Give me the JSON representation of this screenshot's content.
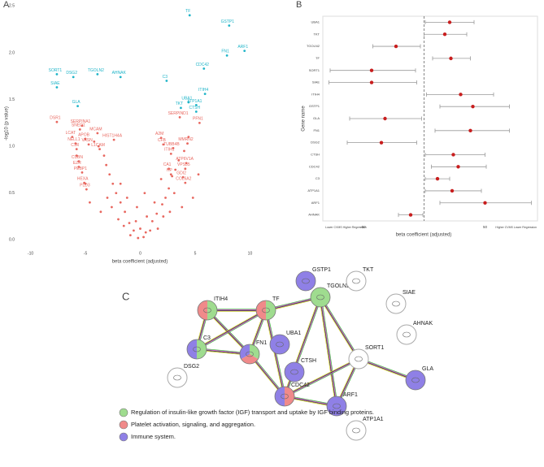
{
  "chart_data": [
    {
      "type": "scatter",
      "panel": "A",
      "xlabel": "beta coefficient (adjusted)",
      "ylabel": "-log10 (p value)",
      "xlim": [
        -11.3,
        11.3
      ],
      "ylim": [
        -0.04,
        2.52
      ],
      "xticks": [
        -10,
        -5,
        0,
        5,
        10
      ],
      "yticks": [
        {
          "value": 0,
          "label": "0.0"
        },
        0.5,
        {
          "value": 1,
          "label": "1.0"
        },
        1.5,
        {
          "value": 2,
          "label": "2.0"
        },
        2.5
      ],
      "grid": false,
      "series": [
        {
          "color": "#1eb4c8",
          "x": [
            4.5,
            8.1,
            9.5,
            7.9,
            5.8,
            2.4,
            -7.6,
            -6.1,
            -3.9,
            -1.8,
            -7.6,
            5.9,
            4.4,
            5.1,
            3.7,
            5.1,
            -5.7
          ],
          "values": [
            2.4,
            2.29,
            2.02,
            1.97,
            1.83,
            1.7,
            1.77,
            1.74,
            1.77,
            1.74,
            1.63,
            1.56,
            1.47,
            1.44,
            1.41,
            1.37,
            1.43
          ],
          "labels": [
            "TF",
            "GSTP1",
            "ARF1",
            "FN1",
            "CDC42",
            "C3",
            "SORT1",
            "DSG2",
            "TGOLN2",
            "AHNAK",
            "SIAE",
            "ITIH4",
            "UBA1",
            "ATP1A1",
            "TKT",
            "CTSH",
            "GLA"
          ]
        },
        {
          "color": "#e8675f",
          "x": [
            -7.6,
            -5.3,
            -5.5,
            -3.9,
            -2.4,
            -6.2,
            -5.0,
            -5.9,
            -4.7,
            -5.8,
            -3.7,
            -5.6,
            -5.6,
            -5.3,
            -5.1,
            -4.9,
            1.9,
            3.6,
            5.4,
            2.1,
            4.3,
            3.0,
            2.8,
            2.6,
            2.8,
            3.9,
            4.1,
            4.1,
            4.2,
            -0.2,
            0.3,
            0.5,
            -0.6,
            -1,
            1.1,
            -1.4,
            1.5,
            -1.8,
            2,
            -2.2,
            2.3,
            -2.5,
            2.6,
            -2.8,
            2.9,
            -3.1,
            3.2,
            -3.3,
            3.5,
            -0.9,
            0.9,
            -1.5,
            1.6,
            -2,
            2.1,
            -2.6,
            2.7,
            -3,
            3.1,
            -0.4,
            0.6,
            -1.2,
            1.3,
            -1.8,
            1.9,
            -3.8,
            4,
            -4.2,
            4.4,
            -5,
            5.3,
            -4.6,
            4.8,
            -3.6,
            3.8,
            0,
            -0.3,
            0.4,
            -5.8
          ],
          "values": [
            1.26,
            1.22,
            1.18,
            1.14,
            1.07,
            1.1,
            1.08,
            1.03,
            1.02,
            0.97,
            0.97,
            0.84,
            0.78,
            0.72,
            0.61,
            0.54,
            1.09,
            1.31,
            1.25,
            1.02,
            1.03,
            0.98,
            0.92,
            0.76,
            0.7,
            0.67,
            0.61,
            0.76,
            0.82,
            0.02,
            0.03,
            0.08,
            0.1,
            0.18,
            0.2,
            0.3,
            0.28,
            0.4,
            0.38,
            0.5,
            0.45,
            0.6,
            0.55,
            0.7,
            0.68,
            0.8,
            0.75,
            0.9,
            0.85,
            0.05,
            0.1,
            0.15,
            0.12,
            0.22,
            0.25,
            0.35,
            0.3,
            0.45,
            0.5,
            0.2,
            0.25,
            0.45,
            0.4,
            0.6,
            0.65,
            1.0,
            0.95,
            1.05,
            1.1,
            0.6,
            0.7,
            0.4,
            0.45,
            0.3,
            0.35,
            0.12,
            0.35,
            0.5,
            0.9
          ],
          "labels": [
            "DSR1",
            "SERPINA1",
            "SNED1",
            "MCAM",
            "HIST1H4A",
            "LCAT",
            "APOB",
            "NELL1",
            "VASN",
            "C1R",
            "L1CAM",
            "CUBN",
            "EZR",
            "PEBP1",
            "HEXA",
            "PLD3",
            "A2M",
            "SERPIND1",
            "PFN1",
            "CFB",
            "MMRN2",
            "TUBB4B",
            "ITIH1",
            "CA1",
            "HP",
            "GDI2",
            "COL6A2",
            "VPS35",
            "ATP6V1A",
            null,
            null,
            null,
            null,
            null,
            null,
            null,
            null,
            null,
            null,
            null,
            null,
            null,
            null,
            null,
            null,
            null,
            null,
            null,
            null,
            null,
            null,
            null,
            null,
            null,
            null,
            null,
            null,
            null,
            null,
            null,
            null,
            null,
            null,
            null,
            null,
            null,
            null,
            null,
            null,
            null,
            null,
            null,
            null,
            null,
            null,
            null,
            null,
            null,
            null
          ]
        }
      ]
    },
    {
      "type": "forest",
      "panel": "B",
      "xlabel": "beta coefficient (adjusted)",
      "ylabel": "Gene name",
      "left_note": "Lower CVMS Higher Regression",
      "right_note": "Higher CVMS Lower Regression",
      "xlim": [
        -83,
        93
      ],
      "xticks": [
        -50,
        50
      ],
      "reference_line": 0,
      "color": "#c81e1e",
      "bar_color": "#999999",
      "categories": [
        "UBA1",
        "TKT",
        "TGOLN2",
        "TF",
        "SORT1",
        "SIAE",
        "ITIH4",
        "GSTP1",
        "GLA",
        "FN1",
        "DSG2",
        "CTSH",
        "CDC42",
        "C3",
        "ATP1A1",
        "ARF1",
        "AHNAK"
      ],
      "values": [
        21,
        17,
        -23,
        22,
        -43,
        -43,
        30,
        40,
        -32,
        38,
        -35,
        24,
        28,
        11,
        23,
        50,
        -11
      ],
      "lower": [
        1,
        0,
        -42,
        7,
        -77,
        -78,
        2,
        13,
        -61,
        9,
        -63,
        1,
        6,
        1,
        1,
        13,
        -21
      ],
      "upper": [
        41,
        35,
        -3,
        38,
        -7,
        -6,
        57,
        70,
        -2,
        70,
        -6,
        50,
        51,
        21,
        47,
        88,
        -1
      ]
    }
  ],
  "network": {
    "panel": "C",
    "nodes": [
      "ITIH4",
      "TF",
      "GSTP1",
      "TGOLN2",
      "TKT",
      "SIAE",
      "AHNAK",
      "C3",
      "UBA1",
      "FN1",
      "CTSH",
      "SORT1",
      "DSG2",
      "GLA",
      "CDC42",
      "ARF1",
      "ATP1A1"
    ],
    "legend": [
      {
        "label": "Regulation of insulin-like growth factor (IGF) transport and uptake by IGF binding proteins.",
        "color": "#9fdc8f"
      },
      {
        "label": "Platelet activation, signaling, and aggregation.",
        "color": "#f08a8a"
      },
      {
        "label": "Immune system.",
        "color": "#8f80e6"
      }
    ]
  }
}
